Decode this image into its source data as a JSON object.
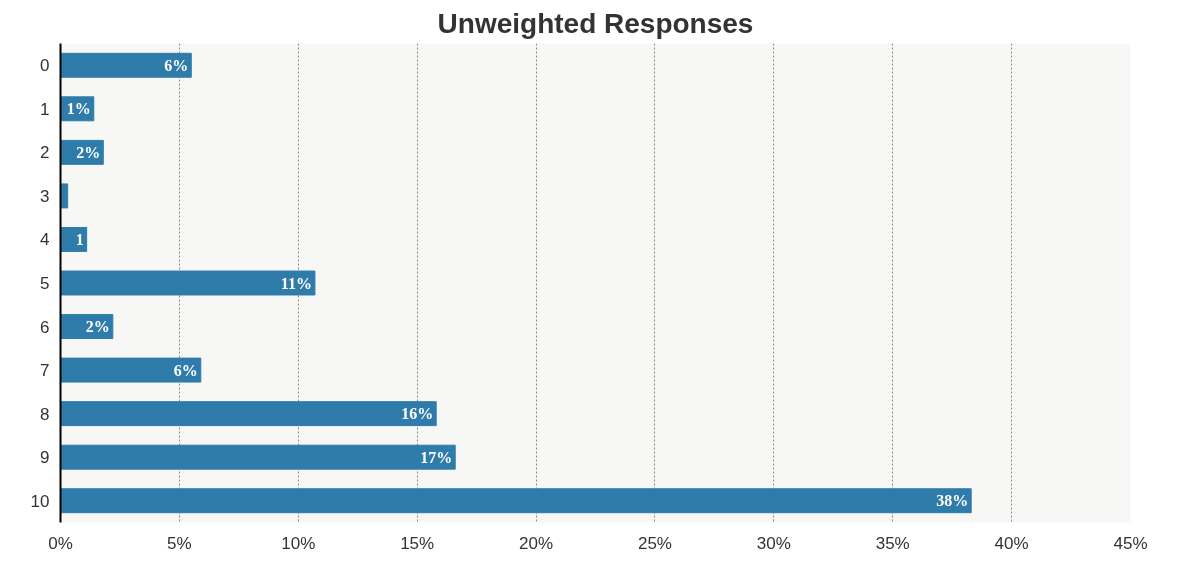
{
  "chart_data": {
    "type": "bar",
    "orientation": "horizontal",
    "title": "Unweighted Responses",
    "categories": [
      "0",
      "1",
      "2",
      "3",
      "4",
      "5",
      "6",
      "7",
      "8",
      "9",
      "10"
    ],
    "values": [
      5.5,
      1.4,
      1.8,
      0.3,
      1.1,
      10.7,
      2.2,
      5.9,
      15.8,
      16.6,
      38.3
    ],
    "value_labels": [
      "6%",
      "1%",
      "2%",
      null,
      "1",
      "11%",
      "2%",
      "6%",
      "16%",
      "17%",
      "38%"
    ],
    "color": "#2f7cab",
    "xlim": [
      0,
      45
    ],
    "xticks": [
      {
        "value": 0,
        "label": "0%"
      },
      {
        "value": 5,
        "label": "5%"
      },
      {
        "value": 10,
        "label": "10%"
      },
      {
        "value": 15,
        "label": "15%"
      },
      {
        "value": 20,
        "label": "20%"
      },
      {
        "value": 25,
        "label": "25%"
      },
      {
        "value": 30,
        "label": "30%"
      },
      {
        "value": 35,
        "label": "35%"
      },
      {
        "value": 40,
        "label": "40%"
      },
      {
        "value": 45,
        "label": "45%"
      }
    ],
    "grid": "x"
  }
}
